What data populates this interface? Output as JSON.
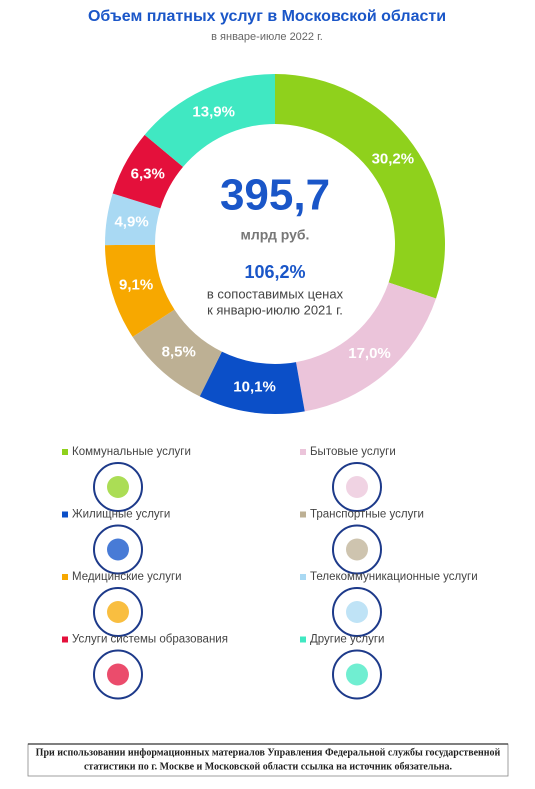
{
  "chart_data": {
    "type": "donut",
    "title": "Объем платных услуг в Московской области",
    "subtitle": "в январе-июле 2022 г.",
    "annotations": [
      "395,7",
      "млрд руб.",
      "106,2%",
      "в сопоставимых ценах",
      "к январю-июлю 2021 г."
    ],
    "categories": [
      "Коммунальные услуги",
      "Бытовые услуги",
      "Жилищные услуги",
      "Транспортные услуги",
      "Медицинские услуги",
      "Телекоммуникационные услуги",
      "Услуги системы образования",
      "Другие услуги"
    ],
    "values": [
      30.2,
      17.0,
      10.1,
      8.5,
      9.1,
      4.9,
      6.3,
      13.9
    ],
    "value_labels": [
      "30,2%",
      "17,0%",
      "10,1%",
      "8,5%",
      "9,1%",
      "4,9%",
      "6,3%",
      "13,9%"
    ],
    "colors": [
      "#8fd11c",
      "#ebc4da",
      "#0b4fc8",
      "#bdb094",
      "#f7a800",
      "#a9d9f3",
      "#e4103b",
      "#40e8c2"
    ],
    "legend": "bottom"
  },
  "footer": {
    "lines": [
      "При использовании информационных материалов Управления Федеральной службы государственной",
      "статистики по г. Москве и Московской области ссылка на источник обязательна."
    ]
  }
}
